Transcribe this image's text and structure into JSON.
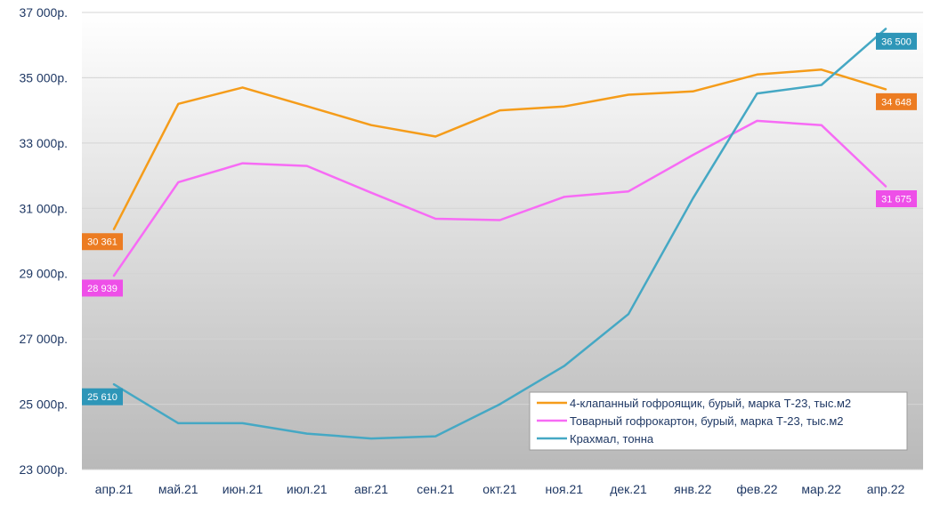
{
  "chart_data": {
    "type": "line",
    "categories": [
      "апр.21",
      "май.21",
      "июн.21",
      "июл.21",
      "авг.21",
      "сен.21",
      "окт.21",
      "ноя.21",
      "дек.21",
      "янв.22",
      "фев.22",
      "мар.22",
      "апр.22"
    ],
    "series": [
      {
        "name": "4-клапанный гофроящик, бурый, марка Т-23, тыс.м2",
        "color": "#f59c1a",
        "values": [
          30361,
          34200,
          34700,
          34130,
          33550,
          33200,
          34000,
          34120,
          34480,
          34580,
          35100,
          35250,
          34648
        ],
        "labels": [
          {
            "index": 0,
            "text": "30 361"
          },
          {
            "index": 12,
            "text": "34 648"
          }
        ]
      },
      {
        "name": "Товарный гофрокартон, бурый, марка Т-23, тыс.м2",
        "color": "#f76bf5",
        "values": [
          28939,
          31800,
          32380,
          32300,
          31480,
          30680,
          30640,
          31350,
          31520,
          32630,
          33680,
          33550,
          31675
        ],
        "labels": [
          {
            "index": 0,
            "text": "28 939"
          },
          {
            "index": 12,
            "text": "31 675"
          }
        ]
      },
      {
        "name": "Крахмал, тонна",
        "color": "#45a8c4",
        "values": [
          25610,
          24420,
          24420,
          24100,
          23950,
          24020,
          25000,
          26170,
          27760,
          31300,
          34520,
          34780,
          36500
        ],
        "labels": [
          {
            "index": 0,
            "text": "25 610"
          },
          {
            "index": 12,
            "text": "36 500"
          }
        ]
      }
    ],
    "ylim": [
      23000,
      37000
    ],
    "yticks": [
      "23 000р.",
      "25 000р.",
      "27 000р.",
      "29 000р.",
      "31 000р.",
      "33 000р.",
      "35 000р.",
      "37 000р."
    ],
    "ytick_values": [
      23000,
      25000,
      27000,
      29000,
      31000,
      33000,
      35000,
      37000
    ],
    "grid": true,
    "legend_position": "bottom-right",
    "label_colors": [
      "#ec7c22",
      "#ee4fe8",
      "#2e96b8"
    ]
  }
}
